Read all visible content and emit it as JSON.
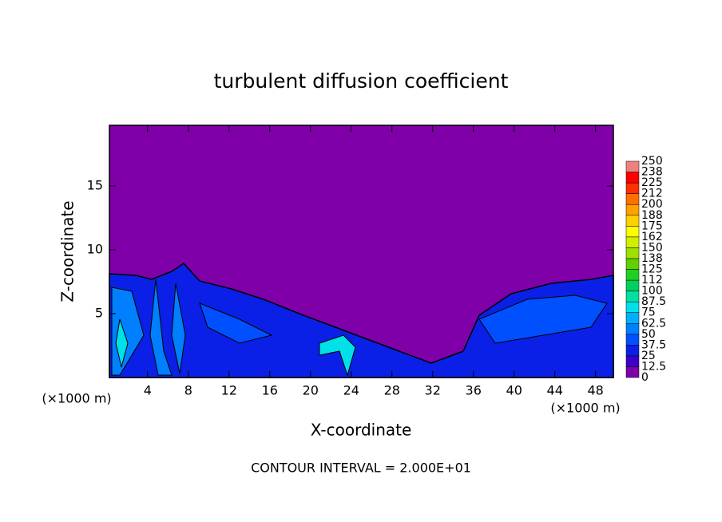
{
  "chart_data": {
    "type": "contour",
    "title": "turbulent diffusion coefficient",
    "xlabel": "X-coordinate",
    "ylabel": "Z-coordinate",
    "x_unit": "(×1000 m)",
    "annotation": "CONTOUR INTERVAL = 2.000E+01",
    "xlim": [
      0.25,
      49.75
    ],
    "ylim": [
      0,
      19.75
    ],
    "xticks": [
      4,
      8,
      12,
      16,
      20,
      24,
      28,
      32,
      36,
      40,
      44,
      48
    ],
    "yticks": [
      5,
      10,
      15
    ],
    "colorbar": {
      "levels": [
        0,
        12.5,
        25,
        37.5,
        50,
        62.5,
        75,
        87.5,
        100,
        {
          "value": 112.5,
          "label": "112"
        },
        125,
        {
          "value": 137.5,
          "label": "138"
        },
        150,
        {
          "value": 162.5,
          "label": "162"
        },
        175,
        {
          "value": 187.5,
          "label": "188"
        },
        200,
        {
          "value": 212.5,
          "label": "212"
        },
        225,
        {
          "value": 237.5,
          "label": "238"
        },
        250
      ],
      "colors": [
        "#7f00a8",
        "#3c00c8",
        "#0a20e6",
        "#0050ff",
        "#0080ff",
        "#00b0ff",
        "#00e0e8",
        "#00e0a0",
        "#00d060",
        "#20d020",
        "#60d000",
        "#a0e000",
        "#d0f000",
        "#ffff00",
        "#ffd000",
        "#ffa000",
        "#ff7000",
        "#ff3000",
        "#ff0000",
        "#f08080"
      ]
    }
  }
}
